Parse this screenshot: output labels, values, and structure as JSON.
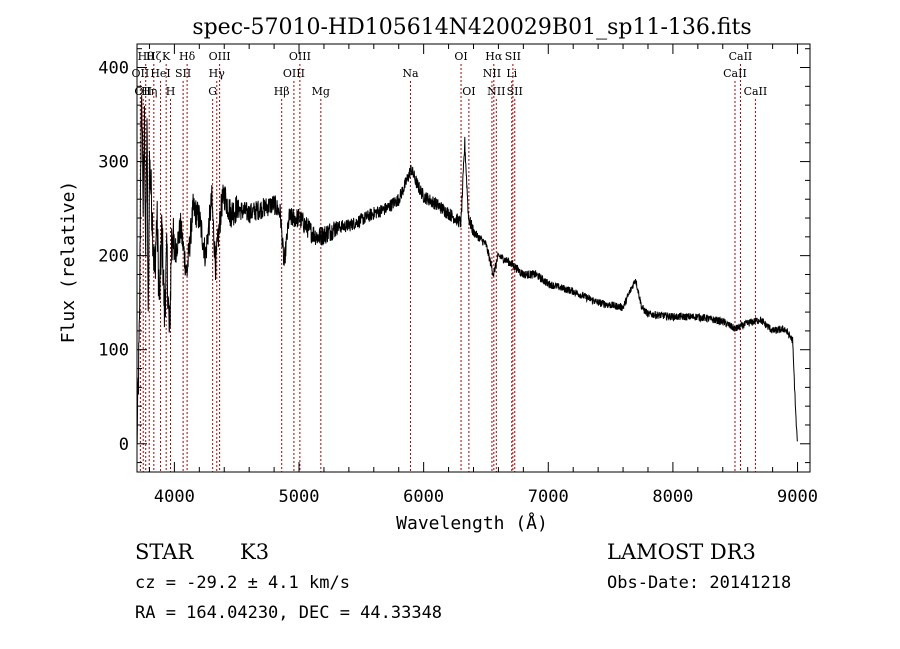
{
  "chart_data": {
    "type": "line",
    "title": "spec-57010-HD105614N420029B01_sp11-136.fits",
    "xlabel": "Wavelength (Å)",
    "ylabel": "Flux (relative)",
    "xlim": [
      3700,
      9100
    ],
    "ylim": [
      -30,
      425
    ],
    "xticks": [
      4000,
      5000,
      6000,
      7000,
      8000,
      9000
    ],
    "yticks": [
      0,
      100,
      200,
      300,
      400
    ],
    "xtick_labels": [
      "4000",
      "5000",
      "6000",
      "7000",
      "8000",
      "9000"
    ],
    "ytick_labels": [
      "0",
      "100",
      "200",
      "300",
      "400"
    ],
    "grid": false,
    "spectrum": {
      "name": "flux",
      "color": "#000000",
      "anchors": [
        [
          3700,
          0
        ],
        [
          3710,
          60
        ],
        [
          3720,
          120
        ],
        [
          3730,
          310
        ],
        [
          3740,
          360
        ],
        [
          3750,
          250
        ],
        [
          3760,
          340
        ],
        [
          3770,
          200
        ],
        [
          3780,
          350
        ],
        [
          3790,
          120
        ],
        [
          3800,
          300
        ],
        [
          3820,
          250
        ],
        [
          3840,
          180
        ],
        [
          3860,
          240
        ],
        [
          3880,
          150
        ],
        [
          3900,
          230
        ],
        [
          3920,
          140
        ],
        [
          3940,
          200
        ],
        [
          3960,
          110
        ],
        [
          3980,
          230
        ],
        [
          4000,
          200
        ],
        [
          4050,
          230
        ],
        [
          4100,
          180
        ],
        [
          4150,
          250
        ],
        [
          4200,
          240
        ],
        [
          4250,
          200
        ],
        [
          4300,
          260
        ],
        [
          4330,
          190
        ],
        [
          4380,
          255
        ],
        [
          4400,
          265
        ],
        [
          4450,
          245
        ],
        [
          4500,
          250
        ],
        [
          4600,
          245
        ],
        [
          4700,
          250
        ],
        [
          4800,
          255
        ],
        [
          4850,
          245
        ],
        [
          4880,
          190
        ],
        [
          4920,
          240
        ],
        [
          5000,
          240
        ],
        [
          5100,
          225
        ],
        [
          5150,
          220
        ],
        [
          5200,
          222
        ],
        [
          5300,
          230
        ],
        [
          5400,
          232
        ],
        [
          5500,
          238
        ],
        [
          5600,
          245
        ],
        [
          5700,
          250
        ],
        [
          5800,
          260
        ],
        [
          5850,
          275
        ],
        [
          5900,
          292
        ],
        [
          5950,
          275
        ],
        [
          6000,
          263
        ],
        [
          6100,
          255
        ],
        [
          6200,
          245
        ],
        [
          6300,
          235
        ],
        [
          6330,
          320
        ],
        [
          6360,
          240
        ],
        [
          6400,
          225
        ],
        [
          6500,
          212
        ],
        [
          6560,
          180
        ],
        [
          6600,
          200
        ],
        [
          6700,
          192
        ],
        [
          6800,
          180
        ],
        [
          6900,
          180
        ],
        [
          7000,
          170
        ],
        [
          7200,
          162
        ],
        [
          7400,
          150
        ],
        [
          7600,
          145
        ],
        [
          7700,
          175
        ],
        [
          7750,
          145
        ],
        [
          7800,
          138
        ],
        [
          8000,
          135
        ],
        [
          8200,
          135
        ],
        [
          8400,
          130
        ],
        [
          8500,
          122
        ],
        [
          8600,
          128
        ],
        [
          8700,
          132
        ],
        [
          8800,
          120
        ],
        [
          8900,
          122
        ],
        [
          8960,
          110
        ],
        [
          8990,
          20
        ],
        [
          9000,
          0
        ]
      ]
    },
    "line_markers": [
      {
        "wl": 3727,
        "label": "OII",
        "row": 1
      },
      {
        "wl": 3750,
        "label": "OII",
        "row": 2
      },
      {
        "wl": 3770,
        "label": "Hθ",
        "row": 0
      },
      {
        "wl": 3798,
        "label": "Hη",
        "row": 2
      },
      {
        "wl": 3835,
        "label": "Hζ",
        "row": 0
      },
      {
        "wl": 3889,
        "label": "HeI",
        "row": 1
      },
      {
        "wl": 3934,
        "label": "K",
        "row": 0
      },
      {
        "wl": 3969,
        "label": "H",
        "row": 2
      },
      {
        "wl": 4070,
        "label": "SII",
        "row": 1
      },
      {
        "wl": 4102,
        "label": "Hδ",
        "row": 0
      },
      {
        "wl": 4307,
        "label": "G",
        "row": 2
      },
      {
        "wl": 4340,
        "label": "Hγ",
        "row": 1
      },
      {
        "wl": 4363,
        "label": "OIII",
        "row": 0
      },
      {
        "wl": 4861,
        "label": "Hβ",
        "row": 2
      },
      {
        "wl": 4959,
        "label": "OIII",
        "row": 1
      },
      {
        "wl": 5007,
        "label": "OIII",
        "row": 0
      },
      {
        "wl": 5175,
        "label": "Mg",
        "row": 2
      },
      {
        "wl": 5894,
        "label": "Na",
        "row": 1
      },
      {
        "wl": 6300,
        "label": "OI",
        "row": 0
      },
      {
        "wl": 6363,
        "label": "OI",
        "row": 2
      },
      {
        "wl": 6548,
        "label": "NII",
        "row": 1
      },
      {
        "wl": 6563,
        "label": "Hα",
        "row": 0
      },
      {
        "wl": 6583,
        "label": "NII",
        "row": 2
      },
      {
        "wl": 6707,
        "label": "Li",
        "row": 1
      },
      {
        "wl": 6716,
        "label": "SII",
        "row": 0
      },
      {
        "wl": 6731,
        "label": "SII",
        "row": 2
      },
      {
        "wl": 8498,
        "label": "CaII",
        "row": 1
      },
      {
        "wl": 8542,
        "label": "CaII",
        "row": 0
      },
      {
        "wl": 8662,
        "label": "CaII",
        "row": 2
      }
    ]
  },
  "info": {
    "class_label": "STAR",
    "subclass": "K3",
    "survey": "LAMOST DR3",
    "redshift": "cz = -29.2 ± 4.1 km/s",
    "obs_date": "Obs-Date: 20141218",
    "coords": "RA = 164.04230, DEC =  44.33348"
  },
  "colors": {
    "marker": "#b00000",
    "line": "#000000"
  }
}
